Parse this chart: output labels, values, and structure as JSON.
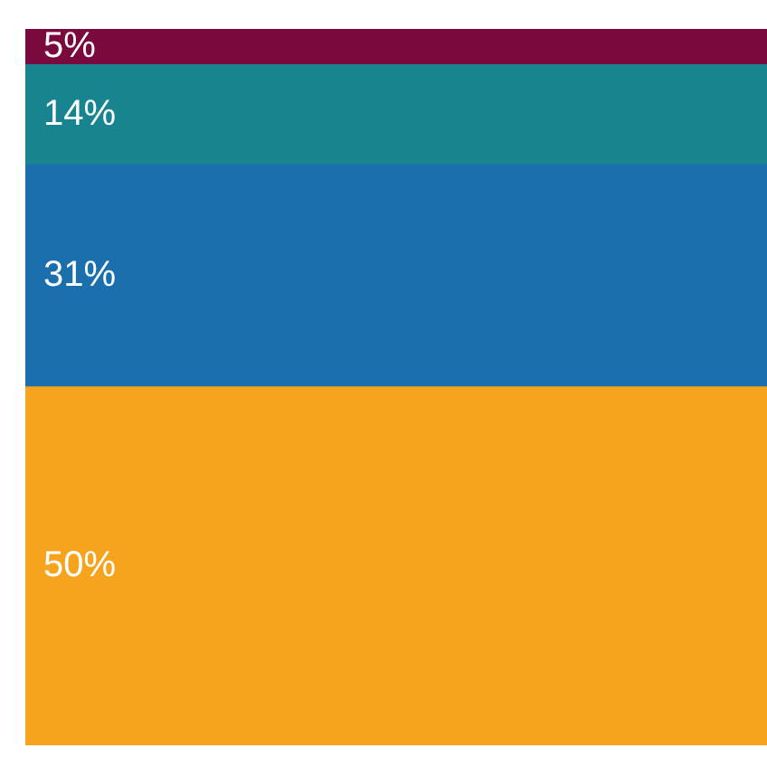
{
  "chart_data": {
    "type": "bar",
    "stacked": true,
    "tick_labels": false,
    "categories": [
      null
    ],
    "series": [
      {
        "color": "#f6a31e",
        "values": [
          50
        ],
        "value_labels": [
          "50%"
        ]
      },
      {
        "color": "#1b6fac",
        "values": [
          31
        ],
        "value_labels": [
          "31%"
        ]
      },
      {
        "color": "#17848f",
        "values": [
          14
        ],
        "value_labels": [
          "14%"
        ]
      },
      {
        "color": "#7a0a3d",
        "values": [
          5
        ],
        "value_labels": [
          "5%"
        ]
      }
    ]
  }
}
